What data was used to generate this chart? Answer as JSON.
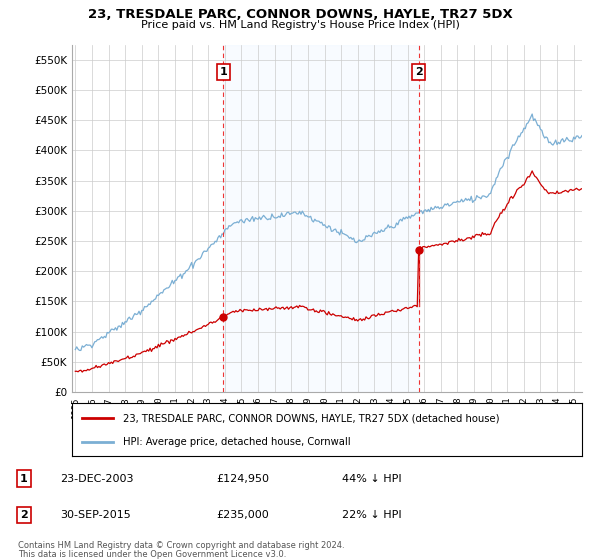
{
  "title": "23, TRESDALE PARC, CONNOR DOWNS, HAYLE, TR27 5DX",
  "subtitle": "Price paid vs. HM Land Registry's House Price Index (HPI)",
  "legend_line1": "23, TRESDALE PARC, CONNOR DOWNS, HAYLE, TR27 5DX (detached house)",
  "legend_line2": "HPI: Average price, detached house, Cornwall",
  "footnote1": "Contains HM Land Registry data © Crown copyright and database right 2024.",
  "footnote2": "This data is licensed under the Open Government Licence v3.0.",
  "annotation1_label": "1",
  "annotation1_date": "23-DEC-2003",
  "annotation1_price": "£124,950",
  "annotation1_hpi": "44% ↓ HPI",
  "annotation2_label": "2",
  "annotation2_date": "30-SEP-2015",
  "annotation2_price": "£235,000",
  "annotation2_hpi": "22% ↓ HPI",
  "red_color": "#cc0000",
  "blue_color": "#7bafd4",
  "shade_color": "#ddeeff",
  "vline_color": "#ee3333",
  "background_color": "#ffffff",
  "grid_color": "#cccccc",
  "ylim": [
    0,
    575000
  ],
  "yticks": [
    0,
    50000,
    100000,
    150000,
    200000,
    250000,
    300000,
    350000,
    400000,
    450000,
    500000,
    550000
  ],
  "year_start": 1995,
  "year_end": 2025
}
